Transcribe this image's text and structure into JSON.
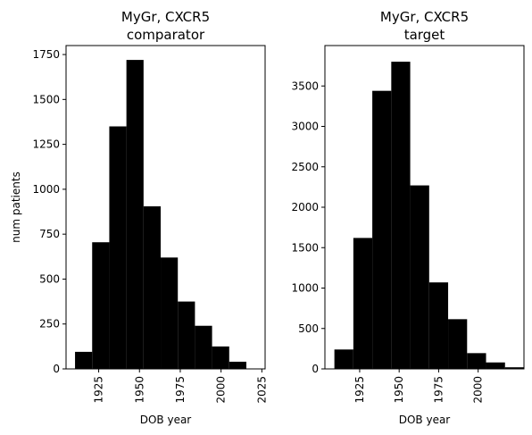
{
  "chart_data": [
    {
      "type": "bar",
      "title": "MyGr, CXCR5\ncomparator",
      "xlabel": "DOB year",
      "ylabel": "num patients",
      "xlim": [
        1905,
        2027
      ],
      "ylim": [
        0,
        1800
      ],
      "xticks": [
        1925,
        1950,
        1975,
        2000,
        2025
      ],
      "yticks": [
        0,
        250,
        500,
        750,
        1000,
        1250,
        1500,
        1750
      ],
      "bins": [
        {
          "x0": 1910.5,
          "x1": 1921,
          "value": 95
        },
        {
          "x0": 1921,
          "x1": 1931.5,
          "value": 705
        },
        {
          "x0": 1931.5,
          "x1": 1942,
          "value": 1350
        },
        {
          "x0": 1942,
          "x1": 1952.5,
          "value": 1720
        },
        {
          "x0": 1952.5,
          "x1": 1963,
          "value": 905
        },
        {
          "x0": 1963,
          "x1": 1973.5,
          "value": 620
        },
        {
          "x0": 1973.5,
          "x1": 1984,
          "value": 375
        },
        {
          "x0": 1984,
          "x1": 1994.5,
          "value": 240
        },
        {
          "x0": 1994.5,
          "x1": 2005,
          "value": 125
        },
        {
          "x0": 2005,
          "x1": 2015.5,
          "value": 40
        }
      ]
    },
    {
      "type": "bar",
      "title": "MyGr, CXCR5\ntarget",
      "xlabel": "DOB year",
      "ylabel": "",
      "xlim": [
        1903,
        2029
      ],
      "ylim": [
        0,
        4000
      ],
      "xticks": [
        1925,
        1950,
        1975,
        2000
      ],
      "yticks": [
        0,
        500,
        1000,
        1500,
        2000,
        2500,
        3000,
        3500
      ],
      "bins": [
        {
          "x0": 1909,
          "x1": 1921,
          "value": 240
        },
        {
          "x0": 1921,
          "x1": 1933,
          "value": 1620
        },
        {
          "x0": 1933,
          "x1": 1945,
          "value": 3440
        },
        {
          "x0": 1945,
          "x1": 1957,
          "value": 3800
        },
        {
          "x0": 1957,
          "x1": 1969,
          "value": 2270
        },
        {
          "x0": 1969,
          "x1": 1981,
          "value": 1070
        },
        {
          "x0": 1981,
          "x1": 1993,
          "value": 615
        },
        {
          "x0": 1993,
          "x1": 2005,
          "value": 195
        },
        {
          "x0": 2005,
          "x1": 2017,
          "value": 80
        },
        {
          "x0": 2017,
          "x1": 2029,
          "value": 20
        }
      ]
    }
  ]
}
